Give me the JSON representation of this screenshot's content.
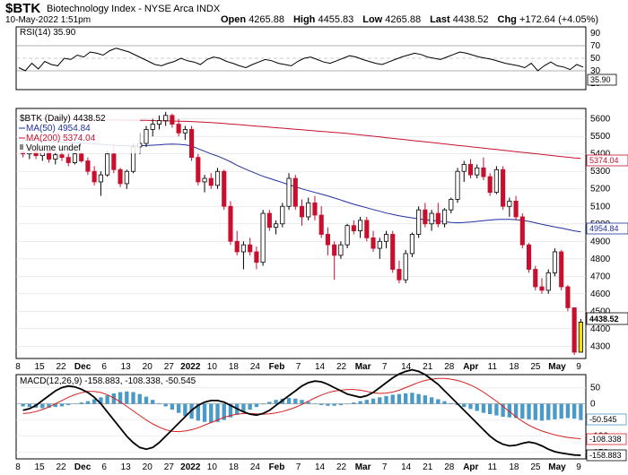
{
  "header": {
    "symbol": "$BTK",
    "name": "Biotechnology Index - NYSE Arca INDX",
    "date": "10-May-2022 1:51pm",
    "open_label": "Open",
    "open": "4265.88",
    "high_label": "High",
    "high": "4455.83",
    "low_label": "Low",
    "low": "4265.88",
    "last_label": "Last",
    "last": "4438.52",
    "chg_label": "Chg",
    "chg": "+172.64 (+4.05%)"
  },
  "rsi": {
    "label": "RSI(14) 35.90",
    "value_tag": "35.90",
    "ticks": [
      "90",
      "70",
      "50",
      "30",
      "10"
    ],
    "values": [
      35,
      30,
      42,
      33,
      45,
      40,
      38,
      50,
      48,
      55,
      52,
      60,
      58,
      55,
      62,
      66,
      63,
      60,
      55,
      50,
      45,
      40,
      38,
      42,
      45,
      50,
      46,
      44,
      40,
      48,
      52,
      50,
      45,
      42,
      38,
      35,
      40,
      44,
      48,
      46,
      42,
      40,
      38,
      45,
      50,
      52,
      48,
      44,
      42,
      46,
      50,
      54,
      52,
      48,
      45,
      42,
      40,
      44,
      48,
      52,
      55,
      58,
      56,
      52,
      50,
      48,
      52,
      56,
      60,
      58,
      55,
      52,
      50,
      48,
      45,
      42,
      40,
      38,
      35,
      42,
      30,
      38,
      44,
      38,
      36,
      32,
      40,
      36
    ]
  },
  "price_panel": {
    "legend": {
      "main": "$BTK (Daily) 4438.52",
      "ma50": "MA(50) 4954.84",
      "ma200": "MA(200) 5374.04",
      "volume": "Volume undef"
    },
    "ticks": [
      "5600",
      "5500",
      "5400",
      "5300",
      "5200",
      "5100",
      "5000",
      "4900",
      "4800",
      "4700",
      "4600",
      "4500",
      "4400",
      "4300"
    ],
    "tags": {
      "ma200": "5374.04",
      "ma50": "4954.84",
      "last": "4438.52"
    }
  },
  "chart_data": {
    "type": "candlestick",
    "ylim": [
      4230,
      5660
    ],
    "candles": [
      {
        "o": 5410,
        "h": 5420,
        "l": 5380,
        "c": 5400
      },
      {
        "o": 5400,
        "h": 5430,
        "l": 5370,
        "c": 5415
      },
      {
        "o": 5415,
        "h": 5420,
        "l": 5370,
        "c": 5390
      },
      {
        "o": 5390,
        "h": 5440,
        "l": 5360,
        "c": 5420
      },
      {
        "o": 5420,
        "h": 5430,
        "l": 5350,
        "c": 5370
      },
      {
        "o": 5370,
        "h": 5410,
        "l": 5340,
        "c": 5395
      },
      {
        "o": 5395,
        "h": 5420,
        "l": 5360,
        "c": 5380
      },
      {
        "o": 5380,
        "h": 5400,
        "l": 5330,
        "c": 5350
      },
      {
        "o": 5350,
        "h": 5410,
        "l": 5340,
        "c": 5400
      },
      {
        "o": 5400,
        "h": 5420,
        "l": 5350,
        "c": 5360
      },
      {
        "o": 5360,
        "h": 5380,
        "l": 5280,
        "c": 5300
      },
      {
        "o": 5300,
        "h": 5330,
        "l": 5220,
        "c": 5240
      },
      {
        "o": 5240,
        "h": 5300,
        "l": 5160,
        "c": 5280
      },
      {
        "o": 5280,
        "h": 5420,
        "l": 5270,
        "c": 5400
      },
      {
        "o": 5400,
        "h": 5450,
        "l": 5290,
        "c": 5310
      },
      {
        "o": 5310,
        "h": 5320,
        "l": 5210,
        "c": 5230
      },
      {
        "o": 5230,
        "h": 5310,
        "l": 5200,
        "c": 5300
      },
      {
        "o": 5300,
        "h": 5460,
        "l": 5290,
        "c": 5440
      },
      {
        "o": 5440,
        "h": 5520,
        "l": 5400,
        "c": 5460
      },
      {
        "o": 5460,
        "h": 5560,
        "l": 5440,
        "c": 5540
      },
      {
        "o": 5540,
        "h": 5600,
        "l": 5500,
        "c": 5570
      },
      {
        "o": 5570,
        "h": 5620,
        "l": 5540,
        "c": 5590
      },
      {
        "o": 5590,
        "h": 5640,
        "l": 5560,
        "c": 5620
      },
      {
        "o": 5620,
        "h": 5630,
        "l": 5550,
        "c": 5570
      },
      {
        "o": 5570,
        "h": 5600,
        "l": 5500,
        "c": 5520
      },
      {
        "o": 5520,
        "h": 5560,
        "l": 5480,
        "c": 5540
      },
      {
        "o": 5540,
        "h": 5560,
        "l": 5360,
        "c": 5380
      },
      {
        "o": 5380,
        "h": 5400,
        "l": 5220,
        "c": 5240
      },
      {
        "o": 5240,
        "h": 5280,
        "l": 5180,
        "c": 5260
      },
      {
        "o": 5260,
        "h": 5290,
        "l": 5200,
        "c": 5220
      },
      {
        "o": 5220,
        "h": 5320,
        "l": 5200,
        "c": 5300
      },
      {
        "o": 5300,
        "h": 5310,
        "l": 5080,
        "c": 5100
      },
      {
        "o": 5100,
        "h": 5130,
        "l": 4880,
        "c": 4900
      },
      {
        "o": 4900,
        "h": 4960,
        "l": 4820,
        "c": 4840
      },
      {
        "o": 4840,
        "h": 4900,
        "l": 4740,
        "c": 4880
      },
      {
        "o": 4880,
        "h": 4920,
        "l": 4820,
        "c": 4840
      },
      {
        "o": 4840,
        "h": 4870,
        "l": 4740,
        "c": 4780
      },
      {
        "o": 4780,
        "h": 5080,
        "l": 4760,
        "c": 5060
      },
      {
        "o": 5060,
        "h": 5080,
        "l": 4960,
        "c": 4980
      },
      {
        "o": 4980,
        "h": 5020,
        "l": 4940,
        "c": 5000
      },
      {
        "o": 5000,
        "h": 5120,
        "l": 4980,
        "c": 5100
      },
      {
        "o": 5100,
        "h": 5290,
        "l": 5080,
        "c": 5260
      },
      {
        "o": 5260,
        "h": 5280,
        "l": 5080,
        "c": 5100
      },
      {
        "o": 5100,
        "h": 5140,
        "l": 4990,
        "c": 5040
      },
      {
        "o": 5040,
        "h": 5150,
        "l": 5020,
        "c": 5120
      },
      {
        "o": 5120,
        "h": 5160,
        "l": 5020,
        "c": 5050
      },
      {
        "o": 5050,
        "h": 5100,
        "l": 4920,
        "c": 4940
      },
      {
        "o": 4940,
        "h": 4980,
        "l": 4820,
        "c": 4880
      },
      {
        "o": 4880,
        "h": 4900,
        "l": 4680,
        "c": 4820
      },
      {
        "o": 4820,
        "h": 4900,
        "l": 4800,
        "c": 4880
      },
      {
        "o": 4880,
        "h": 5000,
        "l": 4860,
        "c": 4990
      },
      {
        "o": 4990,
        "h": 5020,
        "l": 4940,
        "c": 4960
      },
      {
        "o": 4960,
        "h": 5040,
        "l": 4920,
        "c": 5020
      },
      {
        "o": 5020,
        "h": 5040,
        "l": 4900,
        "c": 4920
      },
      {
        "o": 4920,
        "h": 4960,
        "l": 4840,
        "c": 4860
      },
      {
        "o": 4860,
        "h": 4920,
        "l": 4800,
        "c": 4900
      },
      {
        "o": 4900,
        "h": 4960,
        "l": 4860,
        "c": 4940
      },
      {
        "o": 4940,
        "h": 4960,
        "l": 4720,
        "c": 4740
      },
      {
        "o": 4740,
        "h": 4790,
        "l": 4660,
        "c": 4680
      },
      {
        "o": 4680,
        "h": 4850,
        "l": 4660,
        "c": 4830
      },
      {
        "o": 4830,
        "h": 4950,
        "l": 4810,
        "c": 4940
      },
      {
        "o": 4940,
        "h": 5100,
        "l": 4920,
        "c": 5080
      },
      {
        "o": 5080,
        "h": 5120,
        "l": 4980,
        "c": 5000
      },
      {
        "o": 5000,
        "h": 5080,
        "l": 4960,
        "c": 5060
      },
      {
        "o": 5060,
        "h": 5120,
        "l": 4980,
        "c": 5000
      },
      {
        "o": 5000,
        "h": 5090,
        "l": 4980,
        "c": 5080
      },
      {
        "o": 5080,
        "h": 5150,
        "l": 5060,
        "c": 5140
      },
      {
        "o": 5140,
        "h": 5320,
        "l": 5120,
        "c": 5300
      },
      {
        "o": 5300,
        "h": 5360,
        "l": 5240,
        "c": 5340
      },
      {
        "o": 5340,
        "h": 5370,
        "l": 5260,
        "c": 5280
      },
      {
        "o": 5280,
        "h": 5340,
        "l": 5260,
        "c": 5320
      },
      {
        "o": 5320,
        "h": 5380,
        "l": 5250,
        "c": 5270
      },
      {
        "o": 5270,
        "h": 5290,
        "l": 5160,
        "c": 5180
      },
      {
        "o": 5180,
        "h": 5330,
        "l": 5170,
        "c": 5310
      },
      {
        "o": 5310,
        "h": 5330,
        "l": 5080,
        "c": 5100
      },
      {
        "o": 5100,
        "h": 5150,
        "l": 5040,
        "c": 5130
      },
      {
        "o": 5130,
        "h": 5160,
        "l": 5020,
        "c": 5040
      },
      {
        "o": 5040,
        "h": 5060,
        "l": 4860,
        "c": 4880
      },
      {
        "o": 4880,
        "h": 4890,
        "l": 4720,
        "c": 4740
      },
      {
        "o": 4740,
        "h": 4760,
        "l": 4620,
        "c": 4640
      },
      {
        "o": 4640,
        "h": 4690,
        "l": 4600,
        "c": 4620
      },
      {
        "o": 4620,
        "h": 4740,
        "l": 4600,
        "c": 4720
      },
      {
        "o": 4720,
        "h": 4860,
        "l": 4700,
        "c": 4840
      },
      {
        "o": 4840,
        "h": 4850,
        "l": 4620,
        "c": 4640
      },
      {
        "o": 4640,
        "h": 4650,
        "l": 4500,
        "c": 4520
      },
      {
        "o": 4520,
        "h": 4520,
        "l": 4250,
        "c": 4266
      },
      {
        "o": 4266,
        "h": 4456,
        "l": 4266,
        "c": 4438
      }
    ],
    "ma50": [
      5480,
      5478,
      5476,
      5474,
      5472,
      5470,
      5468,
      5465,
      5463,
      5462,
      5460,
      5458,
      5455,
      5452,
      5450,
      5448,
      5446,
      5446,
      5447,
      5448,
      5450,
      5452,
      5455,
      5456,
      5455,
      5452,
      5445,
      5430,
      5415,
      5400,
      5388,
      5372,
      5355,
      5335,
      5318,
      5302,
      5287,
      5272,
      5260,
      5248,
      5236,
      5224,
      5212,
      5200,
      5190,
      5180,
      5170,
      5160,
      5148,
      5136,
      5124,
      5112,
      5102,
      5092,
      5082,
      5072,
      5062,
      5054,
      5046,
      5040,
      5034,
      5028,
      5024,
      5020,
      5016,
      5012,
      5008,
      5006,
      5008,
      5010,
      5014,
      5018,
      5022,
      5025,
      5026,
      5026,
      5024,
      5020,
      5014,
      5006,
      4998,
      4990,
      4982,
      4976,
      4968,
      4960,
      4954
    ],
    "ma200": [
      5600,
      5600,
      5600,
      5600,
      5599,
      5599,
      5598,
      5598,
      5597,
      5597,
      5596,
      5596,
      5595,
      5595,
      5594,
      5594,
      5593,
      5593,
      5592,
      5592,
      5591,
      5590,
      5589,
      5588,
      5587,
      5586,
      5585,
      5583,
      5581,
      5579,
      5577,
      5574,
      5571,
      5568,
      5565,
      5562,
      5559,
      5556,
      5553,
      5550,
      5547,
      5544,
      5541,
      5538,
      5535,
      5532,
      5529,
      5526,
      5523,
      5520,
      5517,
      5513,
      5509,
      5505,
      5501,
      5497,
      5493,
      5489,
      5485,
      5481,
      5477,
      5473,
      5469,
      5465,
      5461,
      5457,
      5453,
      5449,
      5445,
      5441,
      5437,
      5433,
      5429,
      5425,
      5421,
      5417,
      5413,
      5409,
      5405,
      5401,
      5397,
      5393,
      5389,
      5385,
      5381,
      5377,
      5374
    ],
    "x_ticks": [
      "8",
      "15",
      "22",
      "Dec",
      "6",
      "13",
      "20",
      "27",
      "2022",
      "10",
      "18",
      "24",
      "Feb",
      "7",
      "14",
      "22",
      "Mar",
      "7",
      "14",
      "21",
      "28",
      "Apr",
      "11",
      "18",
      "25",
      "May",
      "9"
    ]
  },
  "macd": {
    "label": "MACD(12,26,9) -158.883, -108.338, -50.545",
    "ticks": [
      "50",
      "0",
      "-50",
      "-100",
      "-150"
    ],
    "tags": {
      "hist": "-50.545",
      "signal": "-108.338",
      "macd": "-158.883"
    },
    "hist": [
      -8,
      -10,
      -12,
      -14,
      -12,
      -10,
      -8,
      -4,
      0,
      4,
      8,
      14,
      20,
      26,
      32,
      36,
      38,
      36,
      30,
      22,
      12,
      2,
      -8,
      -18,
      -28,
      -38,
      -46,
      -52,
      -56,
      -58,
      -56,
      -50,
      -42,
      -34,
      -26,
      -18,
      -10,
      -2,
      6,
      12,
      16,
      18,
      16,
      12,
      6,
      0,
      -4,
      -6,
      -6,
      -4,
      0,
      4,
      8,
      12,
      16,
      20,
      24,
      28,
      30,
      32,
      34,
      30,
      26,
      20,
      14,
      8,
      2,
      -4,
      -10,
      -16,
      -22,
      -28,
      -32,
      -36,
      -40,
      -42,
      -44,
      -46,
      -48,
      -50,
      -52,
      -50,
      -48,
      -46,
      -44,
      -46,
      -50
    ],
    "macd_line": [
      -20,
      -15,
      -5,
      10,
      25,
      40,
      50,
      55,
      52,
      45,
      35,
      20,
      0,
      -25,
      -50,
      -75,
      -100,
      -120,
      -135,
      -140,
      -135,
      -120,
      -100,
      -80,
      -60,
      -40,
      -20,
      -5,
      5,
      10,
      10,
      5,
      -5,
      -15,
      -25,
      -32,
      -35,
      -30,
      -20,
      -5,
      10,
      25,
      40,
      55,
      65,
      70,
      68,
      60,
      50,
      40,
      30,
      25,
      20,
      25,
      35,
      50,
      65,
      80,
      92,
      100,
      105,
      100,
      90,
      75,
      60,
      40,
      20,
      0,
      -20,
      -40,
      -60,
      -80,
      -100,
      -115,
      -125,
      -130,
      -128,
      -122,
      -118,
      -122,
      -130,
      -140,
      -148,
      -152,
      -155,
      -158,
      -159
    ],
    "signal_line": [
      -30,
      -28,
      -24,
      -18,
      -10,
      0,
      10,
      20,
      28,
      34,
      38,
      38,
      35,
      28,
      18,
      6,
      -8,
      -22,
      -36,
      -50,
      -62,
      -72,
      -80,
      -85,
      -86,
      -84,
      -80,
      -74,
      -66,
      -58,
      -50,
      -42,
      -36,
      -32,
      -30,
      -30,
      -31,
      -32,
      -31,
      -28,
      -24,
      -18,
      -11,
      -2,
      8,
      18,
      27,
      34,
      39,
      42,
      44,
      44,
      42,
      38,
      34,
      32,
      33,
      36,
      42,
      50,
      58,
      66,
      72,
      76,
      78,
      78,
      76,
      72,
      66,
      58,
      48,
      36,
      22,
      8,
      -8,
      -24,
      -40,
      -54,
      -66,
      -76,
      -84,
      -90,
      -96,
      -100,
      -104,
      -106,
      -108
    ]
  },
  "x_axis_labels": [
    "8",
    "15",
    "22",
    "Dec",
    "6",
    "13",
    "20",
    "27",
    "2022",
    "10",
    "18",
    "24",
    "Feb",
    "7",
    "14",
    "22",
    "Mar",
    "7",
    "14",
    "21",
    "28",
    "Apr",
    "11",
    "18",
    "25",
    "May",
    "9"
  ],
  "colors": {
    "up": "#000000",
    "down": "#c8102e",
    "last_candle": "#f2e200",
    "ma50": "#1f2f9f",
    "ma200": "#c8102e",
    "hist": "#4a9ac8",
    "macd": "#000000",
    "signal": "#d62020"
  }
}
